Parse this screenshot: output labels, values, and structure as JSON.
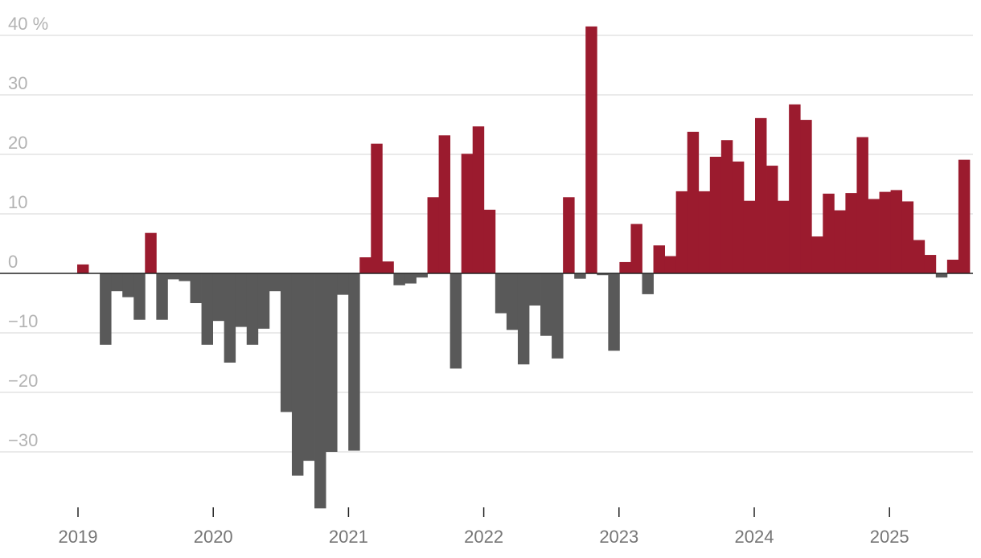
{
  "chart_data": {
    "type": "bar",
    "title": "",
    "xlabel": "",
    "ylabel": "",
    "unit_label": "%",
    "ylim": [
      -40,
      42
    ],
    "y_ticks": [
      {
        "value": 40,
        "label": "40 %"
      },
      {
        "value": 30,
        "label": "30"
      },
      {
        "value": 20,
        "label": "20"
      },
      {
        "value": 10,
        "label": "10"
      },
      {
        "value": 0,
        "label": "0"
      },
      {
        "value": -10,
        "label": "−10"
      },
      {
        "value": -20,
        "label": "−20"
      },
      {
        "value": -30,
        "label": "−30"
      }
    ],
    "x_ticks": [
      {
        "value": 2019,
        "label": "2019"
      },
      {
        "value": 2020,
        "label": "2020"
      },
      {
        "value": 2021,
        "label": "2021"
      },
      {
        "value": 2022,
        "label": "2022"
      },
      {
        "value": 2023,
        "label": "2023"
      },
      {
        "value": 2024,
        "label": "2024"
      },
      {
        "value": 2025,
        "label": "2025"
      }
    ],
    "grid": true,
    "colors": {
      "positive": "#9b1b2e",
      "negative": "#595959",
      "grid": "#dddddd",
      "axis": "#222222"
    },
    "period_start": "2019-01",
    "values": [
      1.5,
      0,
      -12,
      -3,
      -4,
      -7.8,
      6.8,
      -7.8,
      -1,
      -1.3,
      -5,
      -12,
      -8,
      -15,
      -9,
      -12,
      -9.3,
      -3,
      -23.3,
      -34,
      -31.5,
      -39.5,
      -30,
      -3.6,
      -29.8,
      2.7,
      21.8,
      2,
      -2,
      -1.7,
      -0.7,
      12.8,
      23.2,
      -16,
      20.1,
      24.7,
      10.7,
      -6.7,
      -9.5,
      -15.3,
      -5.4,
      -10.5,
      -14.3,
      12.8,
      -0.9,
      41.5,
      -0.3,
      -13,
      1.9,
      8.3,
      -3.5,
      4.7,
      2.9,
      13.8,
      23.8,
      13.8,
      19.6,
      22.4,
      18.8,
      12.2,
      26.1,
      18.1,
      12.2,
      28.4,
      25.8,
      6.2,
      13.4,
      10.6,
      13.5,
      22.9,
      12.5,
      13.7,
      14,
      12.1,
      5.6,
      3.1,
      -0.7,
      2.3,
      19.1
    ]
  }
}
